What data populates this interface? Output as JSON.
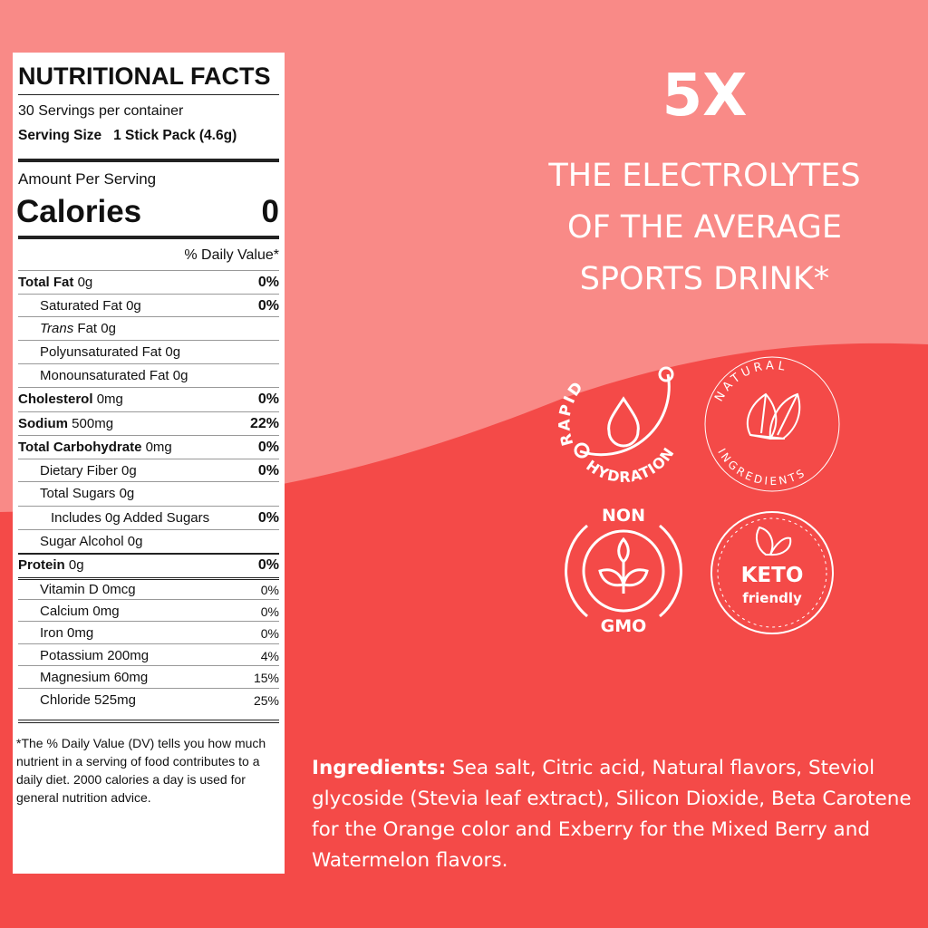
{
  "colors": {
    "top_bg": "#f98a87",
    "bottom_bg": "#f44a48",
    "panel": "#ffffff",
    "text_light": "#ffffff"
  },
  "label": {
    "title": "NUTRITIONAL FACTS",
    "servings": "30 Servings per container",
    "serving_size_label": "Serving Size",
    "serving_size_value": "1 Stick Pack (4.6g)",
    "amount_per_serving": "Amount Per Serving",
    "calories_label": "Calories",
    "calories_value": "0",
    "daily_value_header": "% Daily Value*",
    "rows": [
      {
        "name": "Total Fat",
        "amount": "0g",
        "dv": "0%",
        "bold": true,
        "indent": 0
      },
      {
        "name": "Saturated Fat",
        "amount": "0g",
        "dv": "0%",
        "bold": false,
        "indent": 1
      },
      {
        "name": "Trans",
        "amount": "Fat 0g",
        "dv": "",
        "bold": false,
        "indent": 1,
        "italic": true
      },
      {
        "name": "Polyunsaturated Fat",
        "amount": "0g",
        "dv": "",
        "bold": false,
        "indent": 1
      },
      {
        "name": "Monounsaturated Fat",
        "amount": "0g",
        "dv": "",
        "bold": false,
        "indent": 1
      },
      {
        "name": "Cholesterol",
        "amount": "0mg",
        "dv": "0%",
        "bold": true,
        "indent": 0
      },
      {
        "name": "Sodium",
        "amount": "500mg",
        "dv": "22%",
        "bold": true,
        "indent": 0
      },
      {
        "name": "Total Carbohydrate",
        "amount": "0mg",
        "dv": "0%",
        "bold": true,
        "indent": 0
      },
      {
        "name": "Dietary Fiber",
        "amount": "0g",
        "dv": "0%",
        "bold": false,
        "indent": 1
      },
      {
        "name": "Total Sugars",
        "amount": "0g",
        "dv": "",
        "bold": false,
        "indent": 1
      },
      {
        "name": "Includes 0g Added Sugars",
        "amount": "",
        "dv": "0%",
        "bold": false,
        "indent": 2
      },
      {
        "name": "Sugar Alcohol",
        "amount": "0g",
        "dv": "",
        "bold": false,
        "indent": 1
      },
      {
        "name": "Protein",
        "amount": "0g",
        "dv": "0%",
        "bold": true,
        "indent": 0
      },
      {
        "name": "Vitamin D",
        "amount": "0mcg",
        "dv": "0%",
        "bold": false,
        "indent": 1,
        "minor": true
      },
      {
        "name": "Calcium",
        "amount": "0mg",
        "dv": "0%",
        "bold": false,
        "indent": 1,
        "minor": true
      },
      {
        "name": "Iron",
        "amount": "0mg",
        "dv": "0%",
        "bold": false,
        "indent": 1,
        "minor": true
      },
      {
        "name": "Potassium",
        "amount": "200mg",
        "dv": "4%",
        "bold": false,
        "indent": 1,
        "minor": true
      },
      {
        "name": "Magnesium",
        "amount": "60mg",
        "dv": "15%",
        "bold": false,
        "indent": 1,
        "minor": true
      },
      {
        "name": "Chloride",
        "amount": "525mg",
        "dv": "25%",
        "bold": false,
        "indent": 1,
        "minor": true
      }
    ],
    "footnote": "*The % Daily Value (DV) tells you how much nutrient in a serving of food contributes to a daily diet. 2000 calories a day is used for general nutrition advice."
  },
  "headline": {
    "big": "5X",
    "sub": [
      "THE ELECTROLYTES",
      "OF THE AVERAGE",
      "SPORTS DRINK*"
    ]
  },
  "badges": {
    "rapid_top": "RAPID",
    "rapid_bottom": "HYDRATION",
    "natural_top": "NATURAL",
    "natural_bottom": "INGREDIENTS",
    "non": "NON",
    "gmo": "GMO",
    "keto": "KETO",
    "friendly": "friendly"
  },
  "ingredients": {
    "label": "Ingredients:",
    "text": " Sea salt, Citric acid, Natural flavors, Steviol glycoside (Stevia leaf extract), Silicon Dioxide, Beta Carotene for the Orange color and Exberry for the Mixed Berry and Watermelon flavors."
  }
}
